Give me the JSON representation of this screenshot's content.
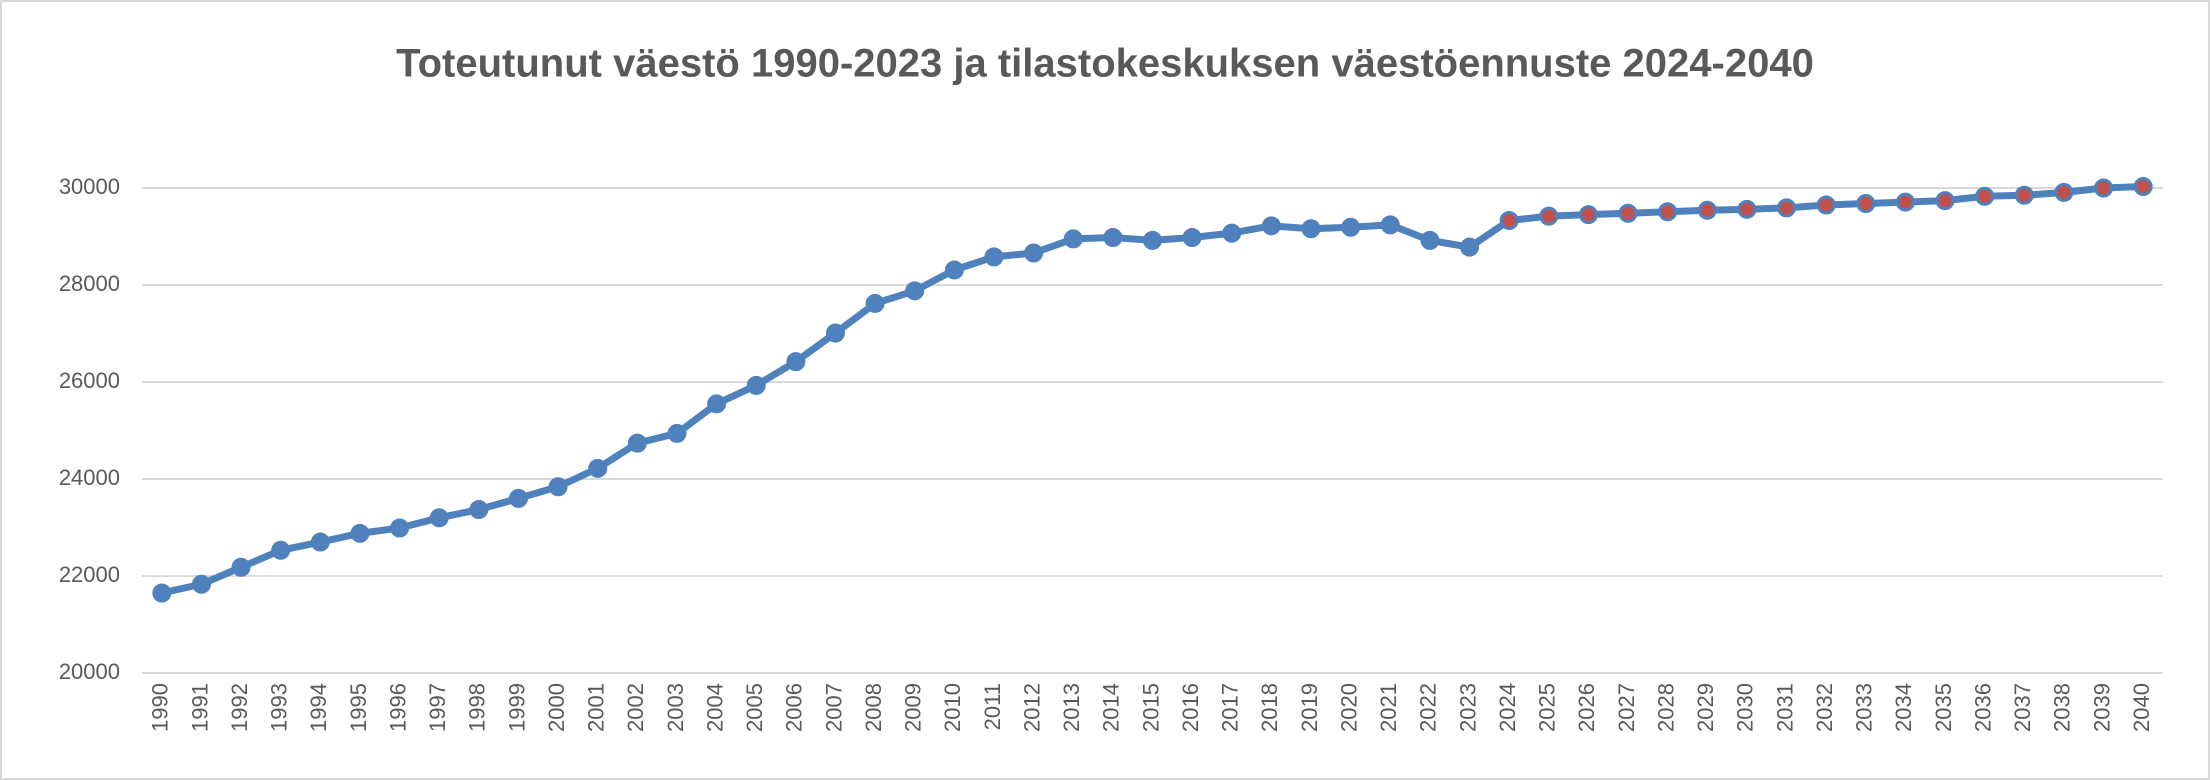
{
  "chart_data": {
    "type": "line",
    "title": "Toteutunut väestö 1990-2023 ja tilastokeskuksen väestöennuste 2024-2040",
    "categories": [
      "1990",
      "1991",
      "1992",
      "1993",
      "1994",
      "1995",
      "1996",
      "1997",
      "1998",
      "1999",
      "2000",
      "2001",
      "2002",
      "2003",
      "2004",
      "2005",
      "2006",
      "2007",
      "2008",
      "2009",
      "2010",
      "2011",
      "2012",
      "2013",
      "2014",
      "2015",
      "2016",
      "2017",
      "2018",
      "2019",
      "2020",
      "2021",
      "2022",
      "2023",
      "2024",
      "2025",
      "2026",
      "2027",
      "2028",
      "2029",
      "2030",
      "2031",
      "2032",
      "2033",
      "2034",
      "2035",
      "2036",
      "2037",
      "2038",
      "2039",
      "2040"
    ],
    "series": [
      {
        "color": "#4f81bd",
        "values": [
          21650,
          21830,
          22180,
          22530,
          22700,
          22880,
          22990,
          23200,
          23370,
          23600,
          23840,
          24220,
          24740,
          24940,
          25550,
          25930,
          26420,
          27010,
          27620,
          27880,
          28310,
          28580,
          28660,
          28950,
          28980,
          28920,
          28980,
          29070,
          29220,
          29160,
          29190,
          29240,
          28920,
          28780,
          29330,
          29420,
          29450,
          29480,
          29510,
          29540,
          29560,
          29590,
          29650,
          29680,
          29710,
          29740,
          29830,
          29850,
          29910,
          30000,
          30030
        ],
        "marker_colors": [
          "#4f81bd",
          "#4f81bd",
          "#4f81bd",
          "#4f81bd",
          "#4f81bd",
          "#4f81bd",
          "#4f81bd",
          "#4f81bd",
          "#4f81bd",
          "#4f81bd",
          "#4f81bd",
          "#4f81bd",
          "#4f81bd",
          "#4f81bd",
          "#4f81bd",
          "#4f81bd",
          "#4f81bd",
          "#4f81bd",
          "#4f81bd",
          "#4f81bd",
          "#4f81bd",
          "#4f81bd",
          "#4f81bd",
          "#4f81bd",
          "#4f81bd",
          "#4f81bd",
          "#4f81bd",
          "#4f81bd",
          "#4f81bd",
          "#4f81bd",
          "#4f81bd",
          "#4f81bd",
          "#4f81bd",
          "#4f81bd",
          "#c0504d",
          "#c0504d",
          "#c0504d",
          "#c0504d",
          "#c0504d",
          "#c0504d",
          "#c0504d",
          "#c0504d",
          "#c0504d",
          "#c0504d",
          "#c0504d",
          "#c0504d",
          "#c0504d",
          "#c0504d",
          "#c0504d",
          "#c0504d",
          "#c0504d"
        ]
      }
    ],
    "ylim": [
      20000,
      31000
    ],
    "yticks": [
      20000,
      22000,
      24000,
      26000,
      28000,
      30000
    ],
    "grid": true
  }
}
